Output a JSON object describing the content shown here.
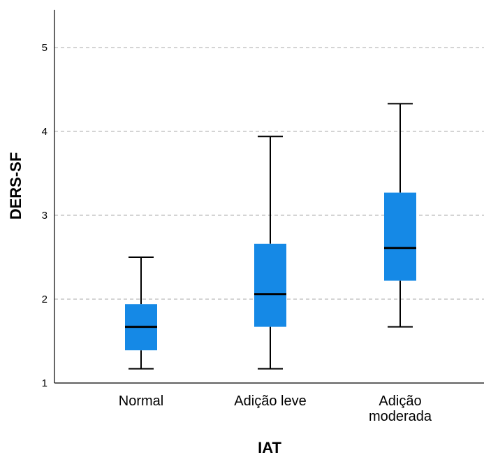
{
  "chart_data": {
    "type": "boxplot",
    "title": "",
    "xlabel": "IAT",
    "ylabel": "DERS-SF",
    "ylim": [
      1,
      5.45
    ],
    "yticks": [
      1,
      2,
      3,
      4,
      5
    ],
    "grid": "horizontal dashed",
    "categories": [
      {
        "label_lines": [
          "Normal"
        ]
      },
      {
        "label_lines": [
          "Adição leve"
        ]
      },
      {
        "label_lines": [
          "Adição",
          "moderada"
        ]
      }
    ],
    "boxes": [
      {
        "category": "Normal",
        "whisker_low": 1.17,
        "q1": 1.39,
        "median": 1.67,
        "q3": 1.94,
        "whisker_high": 2.5
      },
      {
        "category": "Adição leve",
        "whisker_low": 1.17,
        "q1": 1.67,
        "median": 2.06,
        "q3": 2.66,
        "whisker_high": 3.94
      },
      {
        "category": "Adição moderada",
        "whisker_low": 1.67,
        "q1": 2.22,
        "median": 2.61,
        "q3": 3.27,
        "whisker_high": 4.33
      }
    ],
    "colors": {
      "box_fill": "#1589e6",
      "median": "#000000",
      "whisker": "#000000",
      "grid": "#a8a8a8",
      "axis": "#000000"
    }
  }
}
